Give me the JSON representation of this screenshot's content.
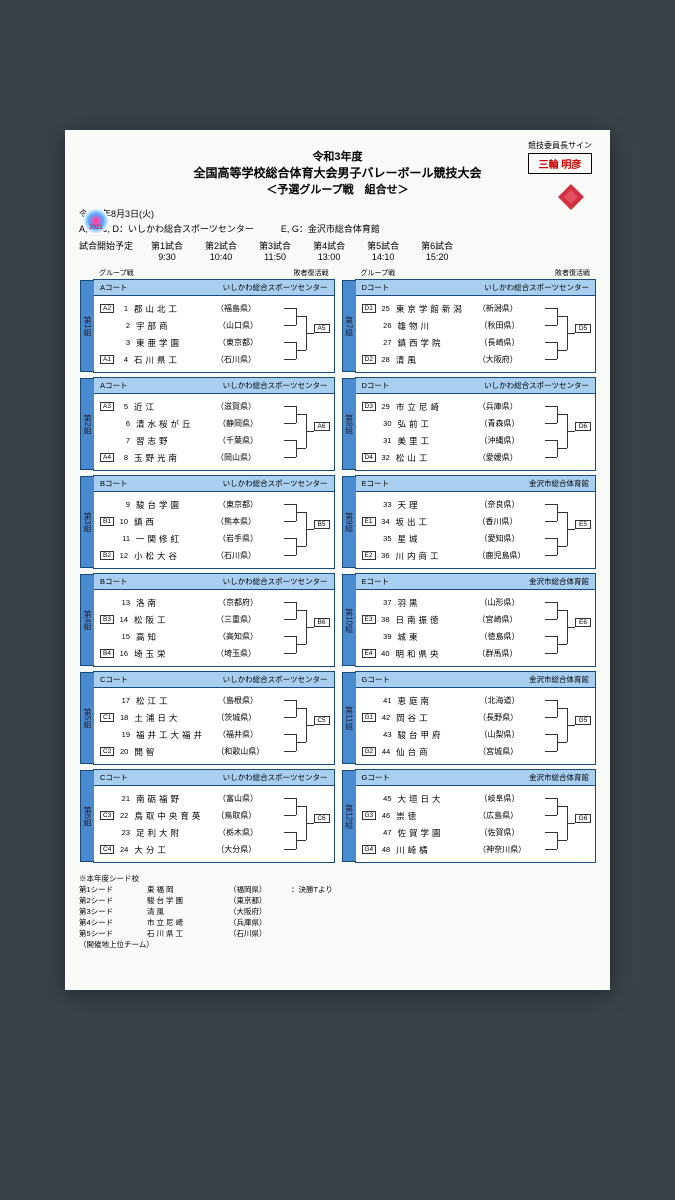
{
  "signLabel": "競技委員長サイン",
  "signName": "三輪 明彦",
  "badgeYear": "2021",
  "title1": "令和3年度",
  "title2": "全国高等学校総合体育大会男子バレーボール競技大会",
  "title3": "＜予選グループ戦　組合せ＞",
  "dateLine": "令和3年8月3日(火)",
  "venueLine1": "A, B, C, D：いしかわ総合スポーツセンター",
  "venueLine2": "E, G：金沢市総合体育館",
  "scheduleLabel": "試合開始予定",
  "matches": [
    {
      "lbl": "第1試合",
      "time": "9:30"
    },
    {
      "lbl": "第2試合",
      "time": "10:40"
    },
    {
      "lbl": "第3試合",
      "time": "11:50"
    },
    {
      "lbl": "第4試合",
      "time": "13:00"
    },
    {
      "lbl": "第5試合",
      "time": "14:10"
    },
    {
      "lbl": "第6試合",
      "time": "15:20"
    }
  ],
  "colHeader1": "グループ戦",
  "colHeader2": "敗者復活戦",
  "leftGroups": [
    {
      "tab": "第1組",
      "court": "Aコート",
      "venue": "いしかわ総合スポーツセンター",
      "out": "A5",
      "teams": [
        {
          "seed": "A2",
          "n": "1",
          "name": "郡山北工",
          "pref": "（福島県）"
        },
        {
          "seed": "",
          "n": "2",
          "name": "宇部商",
          "pref": "（山口県）"
        },
        {
          "seed": "",
          "n": "3",
          "name": "東亜学園",
          "pref": "（東京都）"
        },
        {
          "seed": "A1",
          "n": "4",
          "name": "石川県工",
          "pref": "（石川県）"
        }
      ]
    },
    {
      "tab": "第2組",
      "court": "Aコート",
      "venue": "いしかわ総合スポーツセンター",
      "out": "A6",
      "teams": [
        {
          "seed": "A3",
          "n": "5",
          "name": "近江",
          "pref": "（滋賀県）"
        },
        {
          "seed": "",
          "n": "6",
          "name": "清水桜が丘",
          "pref": "（静岡県）"
        },
        {
          "seed": "",
          "n": "7",
          "name": "習志野",
          "pref": "（千葉県）"
        },
        {
          "seed": "A4",
          "n": "8",
          "name": "玉野光南",
          "pref": "（岡山県）"
        }
      ]
    },
    {
      "tab": "第3組",
      "court": "Bコート",
      "venue": "いしかわ総合スポーツセンター",
      "out": "B5",
      "teams": [
        {
          "seed": "",
          "n": "9",
          "name": "駿台学園",
          "pref": "（東京都）"
        },
        {
          "seed": "B1",
          "n": "10",
          "name": "鎮西",
          "pref": "（熊本県）"
        },
        {
          "seed": "",
          "n": "11",
          "name": "一関修紅",
          "pref": "（岩手県）"
        },
        {
          "seed": "B2",
          "n": "12",
          "name": "小松大谷",
          "pref": "（石川県）"
        }
      ]
    },
    {
      "tab": "第4組",
      "court": "Bコート",
      "venue": "いしかわ総合スポーツセンター",
      "out": "B6",
      "teams": [
        {
          "seed": "",
          "n": "13",
          "name": "洛南",
          "pref": "（京都府）"
        },
        {
          "seed": "B3",
          "n": "14",
          "name": "松阪工",
          "pref": "（三重県）"
        },
        {
          "seed": "",
          "n": "15",
          "name": "高知",
          "pref": "（高知県）"
        },
        {
          "seed": "B4",
          "n": "16",
          "name": "埼玉栄",
          "pref": "（埼玉県）"
        }
      ]
    },
    {
      "tab": "第5組",
      "court": "Cコート",
      "venue": "いしかわ総合スポーツセンター",
      "out": "C5",
      "teams": [
        {
          "seed": "",
          "n": "17",
          "name": "松江工",
          "pref": "（島根県）"
        },
        {
          "seed": "C1",
          "n": "18",
          "name": "土浦日大",
          "pref": "（茨城県）"
        },
        {
          "seed": "",
          "n": "19",
          "name": "福井工大福井",
          "pref": "（福井県）"
        },
        {
          "seed": "C2",
          "n": "20",
          "name": "開智",
          "pref": "（和歌山県）"
        }
      ]
    },
    {
      "tab": "第6組",
      "court": "Cコート",
      "venue": "いしかわ総合スポーツセンター",
      "out": "C6",
      "teams": [
        {
          "seed": "",
          "n": "21",
          "name": "南砺福野",
          "pref": "（富山県）"
        },
        {
          "seed": "C3",
          "n": "22",
          "name": "鳥取中央育英",
          "pref": "（鳥取県）"
        },
        {
          "seed": "",
          "n": "23",
          "name": "足利大附",
          "pref": "（栃木県）"
        },
        {
          "seed": "C4",
          "n": "24",
          "name": "大分工",
          "pref": "（大分県）"
        }
      ]
    }
  ],
  "rightGroups": [
    {
      "tab": "第7組",
      "court": "Dコート",
      "venue": "いしかわ総合スポーツセンター",
      "out": "D5",
      "teams": [
        {
          "seed": "D1",
          "n": "25",
          "name": "東京学館新潟",
          "pref": "（新潟県）"
        },
        {
          "seed": "",
          "n": "26",
          "name": "雄物川",
          "pref": "（秋田県）"
        },
        {
          "seed": "",
          "n": "27",
          "name": "鎮西学院",
          "pref": "（長崎県）"
        },
        {
          "seed": "D2",
          "n": "28",
          "name": "清風",
          "pref": "（大阪府）"
        }
      ]
    },
    {
      "tab": "第8組",
      "court": "Dコート",
      "venue": "いしかわ総合スポーツセンター",
      "out": "D6",
      "teams": [
        {
          "seed": "D3",
          "n": "29",
          "name": "市立尼崎",
          "pref": "（兵庫県）"
        },
        {
          "seed": "",
          "n": "30",
          "name": "弘前工",
          "pref": "（青森県）"
        },
        {
          "seed": "",
          "n": "31",
          "name": "美里工",
          "pref": "（沖縄県）"
        },
        {
          "seed": "D4",
          "n": "32",
          "name": "松山工",
          "pref": "（愛媛県）"
        }
      ]
    },
    {
      "tab": "第9組",
      "court": "Eコート",
      "venue": "金沢市総合体育館",
      "out": "E5",
      "teams": [
        {
          "seed": "",
          "n": "33",
          "name": "天理",
          "pref": "（奈良県）"
        },
        {
          "seed": "E1",
          "n": "34",
          "name": "坂出工",
          "pref": "（香川県）"
        },
        {
          "seed": "",
          "n": "35",
          "name": "星城",
          "pref": "（愛知県）"
        },
        {
          "seed": "E2",
          "n": "36",
          "name": "川内商工",
          "pref": "（鹿児島県）"
        }
      ]
    },
    {
      "tab": "第10組",
      "court": "Eコート",
      "venue": "金沢市総合体育館",
      "out": "E6",
      "teams": [
        {
          "seed": "",
          "n": "37",
          "name": "羽黒",
          "pref": "（山形県）"
        },
        {
          "seed": "E3",
          "n": "38",
          "name": "日南振徳",
          "pref": "（宮崎県）"
        },
        {
          "seed": "",
          "n": "39",
          "name": "城東",
          "pref": "（徳島県）"
        },
        {
          "seed": "E4",
          "n": "40",
          "name": "明和県央",
          "pref": "（群馬県）"
        }
      ]
    },
    {
      "tab": "第11組",
      "court": "Gコート",
      "venue": "金沢市総合体育館",
      "out": "G5",
      "teams": [
        {
          "seed": "",
          "n": "41",
          "name": "恵庭南",
          "pref": "（北海道）"
        },
        {
          "seed": "G1",
          "n": "42",
          "name": "岡谷工",
          "pref": "（長野県）"
        },
        {
          "seed": "",
          "n": "43",
          "name": "駿台甲府",
          "pref": "（山梨県）"
        },
        {
          "seed": "G2",
          "n": "44",
          "name": "仙台商",
          "pref": "（宮城県）"
        }
      ]
    },
    {
      "tab": "第12組",
      "court": "Gコート",
      "venue": "金沢市総合体育館",
      "out": "G6",
      "teams": [
        {
          "seed": "",
          "n": "45",
          "name": "大垣日大",
          "pref": "（岐阜県）"
        },
        {
          "seed": "G3",
          "n": "46",
          "name": "崇徳",
          "pref": "（広島県）"
        },
        {
          "seed": "",
          "n": "47",
          "name": "佐賀学園",
          "pref": "（佐賀県）"
        },
        {
          "seed": "G4",
          "n": "48",
          "name": "川崎橘",
          "pref": "（神奈川県）"
        }
      ]
    }
  ],
  "seedsHeader": "※本年度シード校",
  "seeds": [
    {
      "lbl": "第1シード",
      "name": "東福岡",
      "pref": "（福岡県）",
      "note": "：決勝Tより"
    },
    {
      "lbl": "第2シード",
      "name": "駿台学園",
      "pref": "（東京都）",
      "note": ""
    },
    {
      "lbl": "第3シード",
      "name": "清風",
      "pref": "（大阪府）",
      "note": ""
    },
    {
      "lbl": "第4シード",
      "name": "市立尼崎",
      "pref": "（兵庫県）",
      "note": ""
    },
    {
      "lbl": "第5シード",
      "name": "石川県工",
      "pref": "（石川県）",
      "note": ""
    }
  ],
  "seedsNote": "（開催地上位チーム）"
}
